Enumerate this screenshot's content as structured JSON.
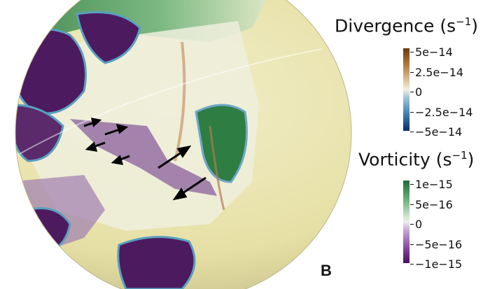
{
  "panel": {
    "label": "B"
  },
  "colors": {
    "background": "#ffffff",
    "globe_base": "#ece7b4",
    "divergence_high": "#6b3a0e",
    "divergence_zero": "#f3efe2",
    "divergence_low": "#0a2a6a",
    "vorticity_high": "#1e6b37",
    "vorticity_zero": "#f0ebf3",
    "vorticity_low": "#4a0d5c"
  },
  "divergence_colorbar": {
    "title": "Divergence (s",
    "unit_exponent": "−1",
    "title_close": ")",
    "ticks": [
      "5e−14",
      "2.5e−14",
      "0",
      "−2.5e−14",
      "−5e−14"
    ],
    "range": [
      -5e-14,
      5e-14
    ]
  },
  "vorticity_colorbar": {
    "title": "Vorticity (s",
    "unit_exponent": "−1",
    "title_close": ")",
    "ticks": [
      "1e−15",
      "5e−16",
      "0",
      "−5e−16",
      "−1e−15"
    ],
    "range": [
      -1e-15,
      1e-15
    ]
  },
  "annotations": {
    "arrow_count": 6,
    "arrow_color": "#000000"
  }
}
